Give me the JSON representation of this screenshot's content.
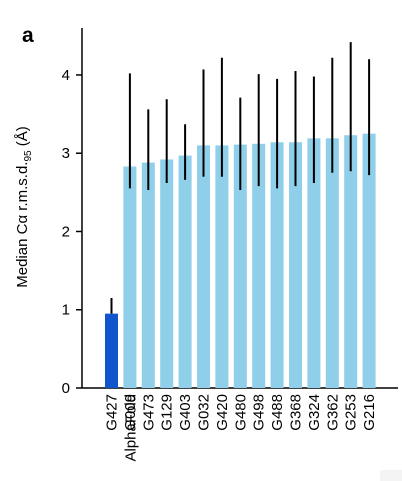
{
  "chart_data": {
    "type": "bar",
    "panel_label": "a",
    "ylabel_main": "Median Cα r.m.s.d.",
    "ylabel_subscript": "95",
    "ylabel_unit": " (Å)",
    "ylim": [
      0,
      4.6
    ],
    "yticks": [
      0,
      1,
      2,
      3,
      4
    ],
    "ytick_labels": [
      "0",
      "1",
      "2",
      "3",
      "4"
    ],
    "grid": false,
    "legend": "none",
    "categories": [
      "G427\nAlphaFold",
      "G009",
      "G473",
      "G129",
      "G403",
      "G032",
      "G420",
      "G480",
      "G498",
      "G488",
      "G368",
      "G324",
      "G362",
      "G253",
      "G216"
    ],
    "values": [
      0.95,
      2.83,
      2.88,
      2.92,
      2.97,
      3.1,
      3.1,
      3.11,
      3.12,
      3.14,
      3.14,
      3.19,
      3.19,
      3.23,
      3.25
    ],
    "error_low": [
      0.95,
      2.55,
      2.53,
      2.62,
      2.66,
      2.7,
      2.7,
      2.53,
      2.58,
      2.55,
      2.58,
      2.62,
      2.75,
      2.77,
      2.72
    ],
    "error_high": [
      1.15,
      4.02,
      3.56,
      3.69,
      3.37,
      4.07,
      4.22,
      3.71,
      4.01,
      3.95,
      4.05,
      3.98,
      4.22,
      4.42,
      4.2
    ],
    "colors": {
      "highlight": "#1155cc",
      "bar": "#8fcfea",
      "error": "#000000",
      "axis": "#000000",
      "text": "#000000"
    }
  }
}
